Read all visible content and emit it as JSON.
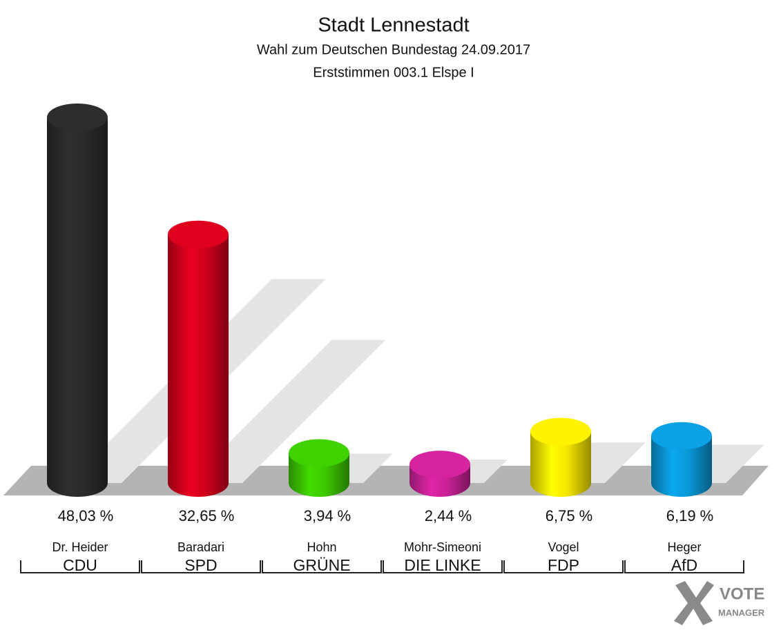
{
  "chart_data": {
    "type": "bar",
    "title": "Stadt Lennestadt",
    "subtitle": "Wahl zum Deutschen Bundestag 24.09.2017",
    "subtitle2": "Erststimmen 003.1 Elspe I",
    "categories": [
      "CDU",
      "SPD",
      "GRÜNE",
      "DIE LINKE",
      "FDP",
      "AfD"
    ],
    "candidates": [
      "Dr. Heider",
      "Baradari",
      "Hohn",
      "Mohr-Simeoni",
      "Vogel",
      "Heger"
    ],
    "values": [
      48.03,
      32.65,
      3.94,
      2.44,
      6.75,
      6.19
    ],
    "value_labels": [
      "48,03 %",
      "32,65 %",
      "3,94 %",
      "2,44 %",
      "6,75 %",
      "6,19 %"
    ],
    "colors": [
      "#2b2b2b",
      "#d3001c",
      "#3cc800",
      "#cc2299",
      "#f6e700",
      "#0a99d9"
    ],
    "logo": [
      "VOTE",
      "MANAGER"
    ]
  }
}
